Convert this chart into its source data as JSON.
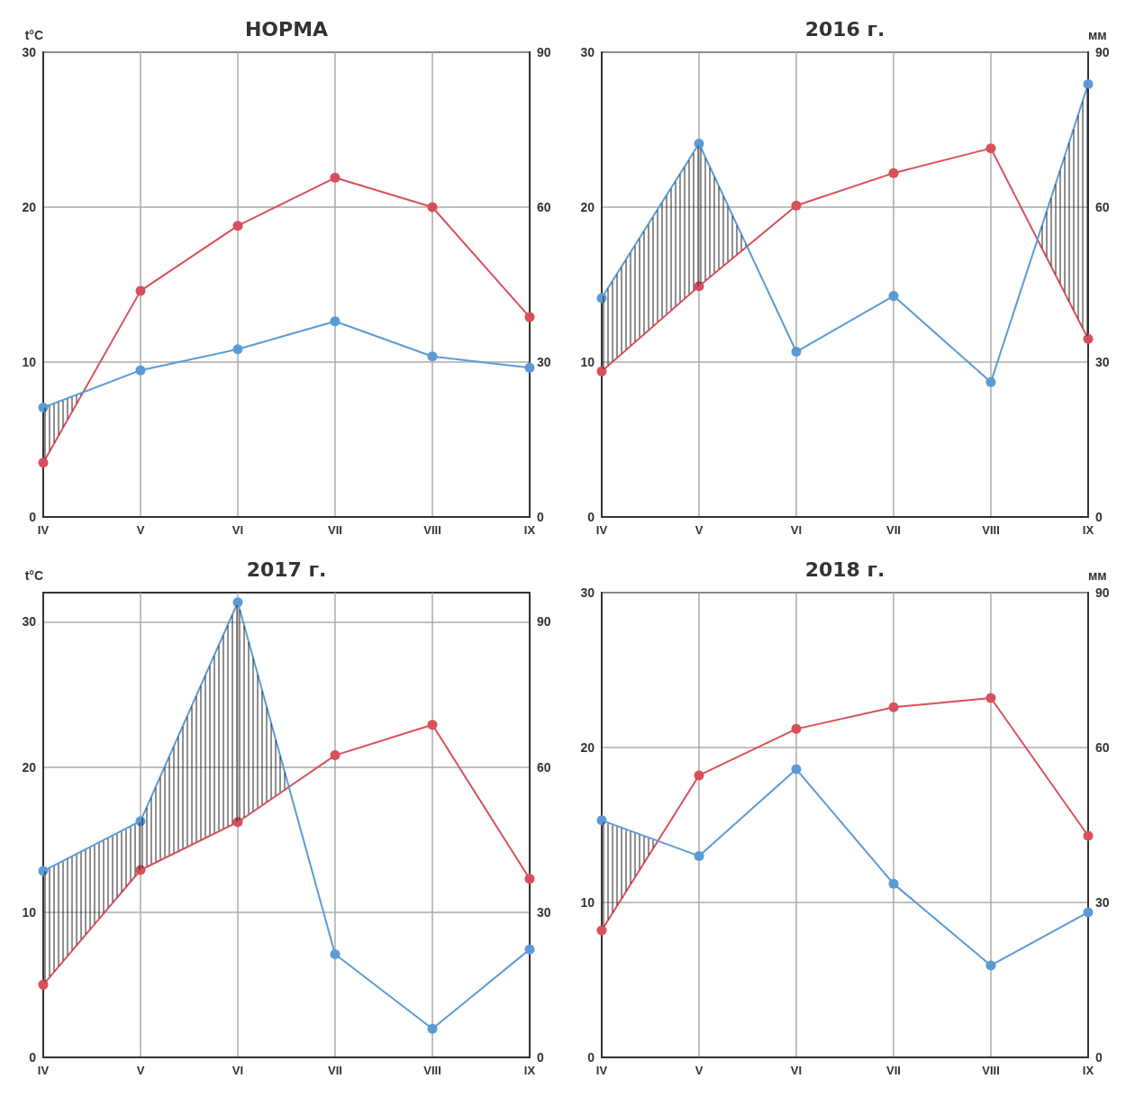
{
  "chart_data": [
    {
      "type": "line",
      "title": "НОРМА",
      "ylabel": "t°C",
      "categories": [
        "IV",
        "V",
        "VI",
        "VII",
        "VIII",
        "IX"
      ],
      "ylim": [
        0,
        30
      ],
      "yticks": [
        0,
        10,
        20,
        30
      ],
      "y2lim": [
        0,
        90
      ],
      "y2ticks": [
        0,
        30,
        60,
        90
      ],
      "grid": true,
      "marker": "circle",
      "series": [
        {
          "color": "#d9505a",
          "values": [
            3.5,
            14.6,
            18.8,
            21.9,
            20.0,
            12.9
          ]
        },
        {
          "color": "#5b9bd5",
          "axis": "y2",
          "values": [
            21.2,
            28.4,
            32.5,
            37.9,
            31.1,
            28.9
          ]
        }
      ]
    },
    {
      "type": "line",
      "title": "2016 г.",
      "y2label": "мм",
      "categories": [
        "IV",
        "V",
        "VI",
        "VII",
        "VIII",
        "IX"
      ],
      "ylim": [
        0,
        30
      ],
      "yticks": [
        0,
        10,
        20,
        30
      ],
      "y2lim": [
        0,
        90
      ],
      "y2ticks": [
        0,
        30,
        60,
        90
      ],
      "grid": true,
      "marker": "circle",
      "series": [
        {
          "color": "#d9505a",
          "values": [
            9.4,
            14.9,
            20.1,
            22.2,
            23.8,
            11.5
          ]
        },
        {
          "color": "#5b9bd5",
          "axis": "y2",
          "values": [
            42.4,
            72.3,
            32.0,
            42.8,
            26.1,
            83.8
          ]
        }
      ]
    },
    {
      "type": "line",
      "title": "2017 г.",
      "ylabel": "t°C",
      "categories": [
        "IV",
        "V",
        "VI",
        "VII",
        "VIII",
        "IX"
      ],
      "ylim": [
        0,
        32
      ],
      "yticks": [
        0,
        10,
        20,
        30
      ],
      "y2lim": [
        0,
        96
      ],
      "y2ticks": [
        0,
        30,
        60,
        90
      ],
      "grid": true,
      "marker": "circle",
      "series": [
        {
          "color": "#d9505a",
          "values": [
            5.0,
            12.9,
            16.2,
            20.8,
            22.9,
            12.3
          ]
        },
        {
          "color": "#5b9bd5",
          "axis": "y2",
          "values": [
            38.5,
            48.8,
            94,
            21.3,
            5.9,
            22.3
          ]
        }
      ]
    },
    {
      "type": "line",
      "title": "2018 г.",
      "y2label": "мм",
      "categories": [
        "IV",
        "V",
        "VI",
        "VII",
        "VIII",
        "IX"
      ],
      "ylim": [
        0,
        30
      ],
      "yticks": [
        0,
        10,
        20,
        30
      ],
      "y2lim": [
        0,
        90
      ],
      "y2ticks": [
        0,
        30,
        60,
        90
      ],
      "grid": true,
      "marker": "circle",
      "series": [
        {
          "color": "#d9505a",
          "values": [
            8.2,
            18.2,
            21.2,
            22.6,
            23.2,
            14.3
          ]
        },
        {
          "color": "#5b9bd5",
          "axis": "y2",
          "values": [
            45.9,
            39.0,
            55.8,
            33.6,
            17.8,
            28.1
          ]
        }
      ]
    }
  ]
}
